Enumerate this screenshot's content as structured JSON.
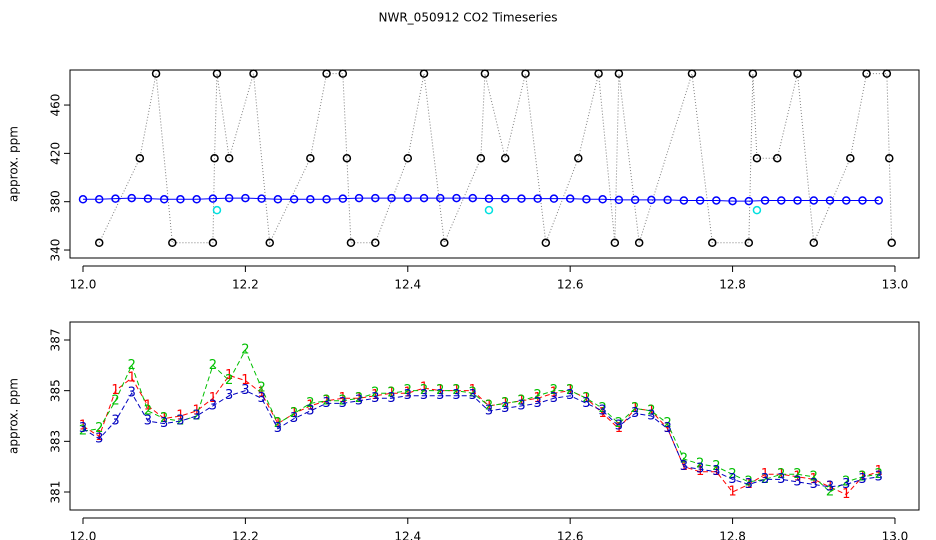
{
  "chart_data": [
    {
      "type": "line",
      "title": "NWR_050912  CO2 Timeseries",
      "ylabel": "approx. ppm",
      "xlim": [
        11.984,
        13.0296
      ],
      "ylim": [
        333.4,
        489
      ],
      "xticks": [
        {
          "value": 12,
          "label": "12.0"
        },
        12.2,
        12.4,
        12.6,
        12.8,
        {
          "value": 13,
          "label": "13.0"
        }
      ],
      "yticks": [
        340,
        380,
        420,
        460
      ],
      "x": [
        12.0,
        12.02,
        12.04,
        12.06,
        12.08,
        12.1,
        12.12,
        12.14,
        12.16,
        12.18,
        12.2,
        12.22,
        12.24,
        12.26,
        12.28,
        12.3,
        12.32,
        12.34,
        12.36,
        12.38,
        12.4,
        12.42,
        12.44,
        12.46,
        12.48,
        12.5,
        12.52,
        12.54,
        12.56,
        12.58,
        12.6,
        12.62,
        12.64,
        12.66,
        12.68,
        12.7,
        12.72,
        12.74,
        12.76,
        12.78,
        12.8,
        12.82,
        12.84,
        12.86,
        12.88,
        12.9,
        12.92,
        12.94,
        12.96,
        12.98
      ],
      "series": [
        {
          "color": "#808080",
          "line": "dotted",
          "marker": "circle",
          "x": [
            12.02,
            12.07,
            12.09,
            12.11,
            12.16,
            12.162,
            12.165,
            12.18,
            12.21,
            12.23,
            12.28,
            12.3,
            12.32,
            12.325,
            12.33,
            12.36,
            12.4,
            12.42,
            12.445,
            12.49,
            12.495,
            12.52,
            12.545,
            12.57,
            12.61,
            12.635,
            12.655,
            12.66,
            12.685,
            12.75,
            12.775,
            12.82,
            12.825,
            12.83,
            12.855,
            12.88,
            12.9,
            12.945,
            12.965,
            12.99,
            12.993,
            12.996
          ],
          "values": [
            346,
            416,
            486,
            346,
            346,
            416,
            486,
            416,
            486,
            346,
            416,
            486,
            486,
            416,
            346,
            346,
            416,
            486,
            346,
            416,
            486,
            416,
            486,
            346,
            416,
            486,
            346,
            486,
            346,
            486,
            346,
            346,
            486,
            416,
            416,
            486,
            346,
            416,
            486,
            486,
            416,
            346
          ],
          "marker_color": "#000000"
        },
        {
          "color": "#0000ff",
          "line": "solid",
          "marker": "circle",
          "values": [
            382,
            382,
            382.5,
            383,
            382.5,
            382,
            382,
            382,
            382.5,
            383,
            383,
            382.5,
            382,
            382,
            382,
            382,
            382.5,
            383,
            383,
            383,
            383,
            383,
            383,
            383,
            383,
            382.5,
            382.5,
            382.5,
            382.5,
            382.5,
            382.5,
            382,
            382,
            381.5,
            381.5,
            381.5,
            381.5,
            381,
            381,
            381,
            380.5,
            380.5,
            381,
            381,
            381,
            381,
            381,
            381,
            381,
            381
          ]
        },
        {
          "color": "#00e0e0",
          "line": "none",
          "marker": "circle",
          "x": [
            12.165,
            12.5,
            12.83
          ],
          "values": [
            373,
            373,
            373
          ]
        }
      ]
    },
    {
      "type": "line",
      "ylabel": "approx. ppm",
      "xlim": [
        11.984,
        13.0296
      ],
      "ylim": [
        380.29,
        387.71
      ],
      "xticks": [
        {
          "value": 12,
          "label": "12.0"
        },
        12.2,
        12.4,
        12.6,
        12.8,
        {
          "value": 13,
          "label": "13.0"
        }
      ],
      "yticks": [
        381,
        383,
        385,
        387
      ],
      "x": [
        12.0,
        12.02,
        12.04,
        12.06,
        12.08,
        12.1,
        12.12,
        12.14,
        12.16,
        12.18,
        12.2,
        12.22,
        12.24,
        12.26,
        12.28,
        12.3,
        12.32,
        12.34,
        12.36,
        12.38,
        12.4,
        12.42,
        12.44,
        12.46,
        12.48,
        12.5,
        12.52,
        12.54,
        12.56,
        12.58,
        12.6,
        12.62,
        12.64,
        12.66,
        12.68,
        12.7,
        12.72,
        12.74,
        12.76,
        12.78,
        12.8,
        12.82,
        12.84,
        12.86,
        12.88,
        12.9,
        12.92,
        12.94,
        12.96,
        12.98
      ],
      "series": [
        {
          "color": "#ff0000",
          "line": "dashed",
          "marker": "text",
          "label": "1",
          "values": [
            383.6,
            383.2,
            385.0,
            385.5,
            384.4,
            383.9,
            384.0,
            384.2,
            384.7,
            385.6,
            385.4,
            384.9,
            383.7,
            384.1,
            384.4,
            384.6,
            384.7,
            384.7,
            384.8,
            384.9,
            384.9,
            385.1,
            385.0,
            385.0,
            385.0,
            384.4,
            384.5,
            384.6,
            384.7,
            384.9,
            385.0,
            384.7,
            384.1,
            383.5,
            384.3,
            384.2,
            383.5,
            382.0,
            381.8,
            381.8,
            381.0,
            381.3,
            381.7,
            381.7,
            381.6,
            381.5,
            381.2,
            380.9,
            381.6,
            381.8
          ]
        },
        {
          "color": "#00c000",
          "line": "dashed",
          "marker": "text",
          "label": "2",
          "values": [
            383.4,
            383.5,
            384.6,
            386.0,
            384.2,
            383.9,
            383.8,
            384.0,
            386.0,
            385.4,
            386.6,
            385.1,
            383.7,
            384.1,
            384.5,
            384.6,
            384.6,
            384.7,
            384.9,
            384.9,
            385.0,
            385.0,
            385.0,
            385.0,
            384.9,
            384.4,
            384.5,
            384.6,
            384.8,
            385.0,
            385.0,
            384.7,
            384.3,
            383.7,
            384.3,
            384.2,
            383.7,
            382.3,
            382.1,
            382.0,
            381.7,
            381.4,
            381.5,
            381.7,
            381.7,
            381.6,
            381.0,
            381.4,
            381.6,
            381.7
          ]
        },
        {
          "color": "#0000c0",
          "line": "dashed",
          "marker": "text",
          "label": "3",
          "values": [
            383.5,
            383.1,
            383.8,
            384.9,
            383.8,
            383.7,
            383.8,
            384.0,
            384.4,
            384.8,
            385.0,
            384.7,
            383.5,
            383.9,
            384.2,
            384.5,
            384.5,
            384.6,
            384.7,
            384.7,
            384.8,
            384.8,
            384.8,
            384.8,
            384.8,
            384.2,
            384.3,
            384.4,
            384.5,
            384.7,
            384.8,
            384.5,
            384.2,
            383.6,
            384.1,
            384.0,
            383.5,
            382.0,
            381.9,
            381.8,
            381.5,
            381.3,
            381.5,
            381.5,
            381.4,
            381.3,
            381.2,
            381.3,
            381.5,
            381.6
          ]
        }
      ]
    }
  ]
}
